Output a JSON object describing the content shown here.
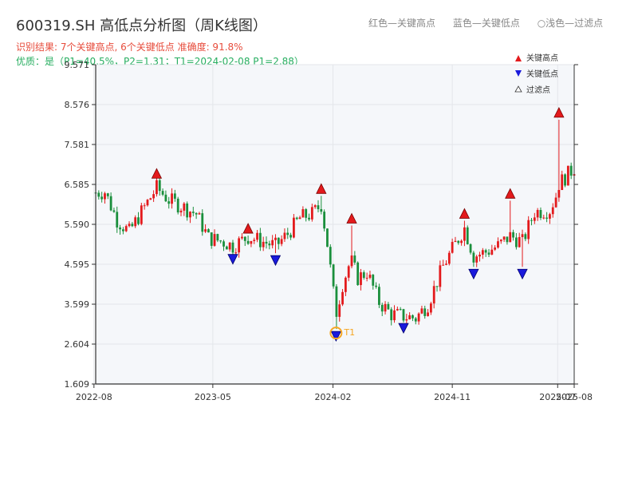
{
  "header": {
    "title": "600319.SH 高低点分析图（周K线图）",
    "result_line": "识别结果: 7个关键高点, 6个关键低点   准确度: 91.8%",
    "quality_line": "优质：是（P1=40.5%，P2=1.31；T1=2024-02-08 P1=2.88）"
  },
  "top_legend": {
    "red": "红色—关键高点",
    "blue": "蓝色—关键低点",
    "filtered": "浅色—过滤点"
  },
  "colors": {
    "up": "#e31a1c",
    "down": "#1a8f3c",
    "high_marker": "#e31a1c",
    "low_marker": "#1a1adc",
    "t1_ring": "#f5a623",
    "plot_bg": "#f5f7fa"
  },
  "chart_data": {
    "type": "candlestick",
    "ylim": [
      1.609,
      9.571
    ],
    "y_ticks": [
      "1.609",
      "2.604",
      "3.599",
      "4.595",
      "5.590",
      "6.585",
      "7.581",
      "8.576",
      "9.571"
    ],
    "x_ticks": [
      "2022-08",
      "2023-05",
      "2024-02",
      "2024-11",
      "2025-07",
      "2025-08"
    ],
    "legend": {
      "high": "关键高点",
      "low": "关键低点",
      "filtered": "过滤点"
    },
    "t1_label": "T1",
    "highs": [
      {
        "date": "2022-12-23",
        "price": 6.78
      },
      {
        "date": "2023-07-21",
        "price": 5.41
      },
      {
        "date": "2024-01-05",
        "price": 6.4
      },
      {
        "date": "2024-03-15",
        "price": 5.66
      },
      {
        "date": "2024-11-29",
        "price": 5.78
      },
      {
        "date": "2025-03-14",
        "price": 6.28
      },
      {
        "date": "2025-07-04",
        "price": 8.3
      }
    ],
    "lows": [
      {
        "date": "2023-06-16",
        "price": 4.8
      },
      {
        "date": "2023-09-22",
        "price": 4.77
      },
      {
        "date": "2024-02-08",
        "price": 2.88
      },
      {
        "date": "2024-07-12",
        "price": 3.08
      },
      {
        "date": "2024-12-20",
        "price": 4.43
      },
      {
        "date": "2025-04-11",
        "price": 4.43
      }
    ],
    "t1": {
      "date": "2024-02-08",
      "price": 2.88
    },
    "anchors": [
      [
        "2022-08-05",
        6.38
      ],
      [
        "2022-08-26",
        6.4
      ],
      [
        "2022-09-23",
        5.7
      ],
      [
        "2022-10-21",
        5.4
      ],
      [
        "2022-11-18",
        5.9
      ],
      [
        "2022-12-23",
        6.5
      ],
      [
        "2023-01-20",
        6.2
      ],
      [
        "2023-02-17",
        6.05
      ],
      [
        "2023-03-24",
        5.85
      ],
      [
        "2023-04-21",
        5.25
      ],
      [
        "2023-05-26",
        5.15
      ],
      [
        "2023-06-16",
        5.05
      ],
      [
        "2023-07-21",
        5.28
      ],
      [
        "2023-08-18",
        5.18
      ],
      [
        "2023-09-22",
        5.05
      ],
      [
        "2023-10-20",
        5.35
      ],
      [
        "2023-11-17",
        5.75
      ],
      [
        "2023-12-15",
        5.85
      ],
      [
        "2024-01-05",
        6.08
      ],
      [
        "2024-01-19",
        5.1
      ],
      [
        "2024-02-08",
        3.35
      ],
      [
        "2024-02-23",
        4.1
      ],
      [
        "2024-03-08",
        4.55
      ],
      [
        "2024-03-15",
        4.65
      ],
      [
        "2024-03-29",
        4.25
      ],
      [
        "2024-04-19",
        4.4
      ],
      [
        "2024-05-17",
        3.65
      ],
      [
        "2024-06-14",
        3.35
      ],
      [
        "2024-07-12",
        3.3
      ],
      [
        "2024-08-09",
        3.25
      ],
      [
        "2024-09-06",
        3.6
      ],
      [
        "2024-10-11",
        4.55
      ],
      [
        "2024-11-08",
        5.1
      ],
      [
        "2024-11-29",
        5.5
      ],
      [
        "2024-12-20",
        4.8
      ],
      [
        "2025-01-17",
        4.9
      ],
      [
        "2025-02-14",
        5.05
      ],
      [
        "2025-03-14",
        5.3
      ],
      [
        "2025-04-11",
        5.15
      ],
      [
        "2025-05-09",
        5.9
      ],
      [
        "2025-06-13",
        5.95
      ],
      [
        "2025-06-27",
        6.3
      ],
      [
        "2025-07-04",
        6.6
      ],
      [
        "2025-08-08",
        7.0
      ]
    ]
  }
}
